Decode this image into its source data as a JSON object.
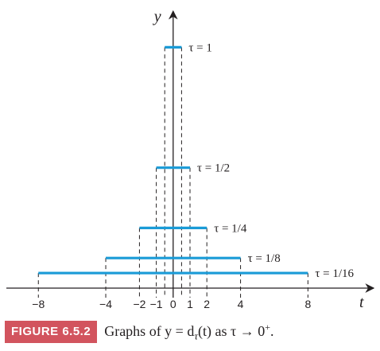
{
  "chart_data": {
    "type": "line",
    "xlabel": "t",
    "ylabel": "y",
    "x_ticks": [
      "−8",
      "−4",
      "−2",
      "−1",
      "0",
      "1",
      "2",
      "4",
      "8"
    ],
    "x_tick_values": [
      -8,
      -4,
      -2,
      -1,
      0,
      1,
      2,
      4,
      8
    ],
    "xlim": [
      -9.9,
      11.9
    ],
    "ylim": [
      0,
      9.2
    ],
    "series": [
      {
        "name": "τ = 1",
        "x": [
          -0.5,
          0.5
        ],
        "y": [
          8,
          8
        ]
      },
      {
        "name": "τ = 1/2",
        "x": [
          -1,
          1
        ],
        "y": [
          4,
          4
        ]
      },
      {
        "name": "τ = 1/4",
        "x": [
          -2,
          2
        ],
        "y": [
          2,
          2
        ]
      },
      {
        "name": "τ = 1/8",
        "x": [
          -4,
          4
        ],
        "y": [
          1,
          1
        ]
      },
      {
        "name": "τ = 1/16",
        "x": [
          -8,
          8
        ],
        "y": [
          0.5,
          0.5
        ]
      }
    ],
    "line_color": "#1a9bd7",
    "grid": false,
    "legend": "labels-at-right-of-each-line"
  },
  "caption": {
    "tag": "FIGURE 6.5.2",
    "text": "Graphs of y = d",
    "text_sub": "τ",
    "text_rest": "(t) as τ → 0",
    "text_sup": "+",
    "text_end": "."
  },
  "colors": {
    "caption_tag": "#d2545e",
    "axis": "#231f20"
  }
}
